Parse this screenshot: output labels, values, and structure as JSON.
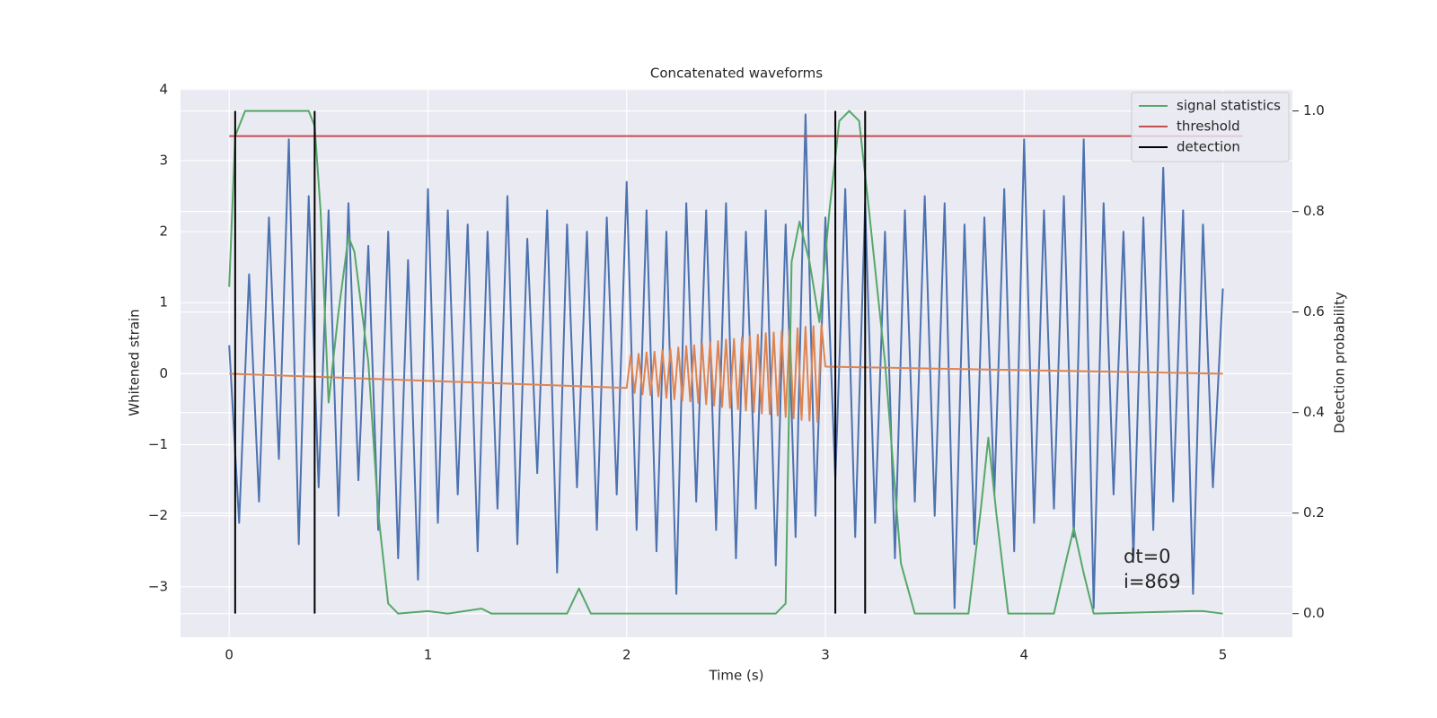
{
  "chart_data": {
    "type": "line",
    "title": "Concatenated waveforms",
    "xlabel": "Time (s)",
    "ylabel": "Whitened strain",
    "y2label": "Detection probability",
    "xlim": [
      -0.245,
      5.35
    ],
    "ylim": [
      -3.71,
      4.01
    ],
    "y2lim": [
      -0.047,
      1.044
    ],
    "xticks": [
      0,
      1,
      2,
      3,
      4,
      5
    ],
    "yticks": [
      {
        "value": -3,
        "label": "−3"
      },
      {
        "value": -2,
        "label": "−2"
      },
      {
        "value": -1,
        "label": "−1"
      },
      0,
      1,
      2,
      3,
      4
    ],
    "y2ticks": [
      {
        "value": 0,
        "label": "0.0"
      },
      0.2,
      0.4,
      0.6,
      0.8,
      {
        "value": 1,
        "label": "1.0"
      }
    ],
    "grid": true,
    "legend": "upper right",
    "annotations": [
      "dt=0",
      "i=869"
    ],
    "series": [
      {
        "color": "#4c72b0",
        "x": [
          0,
          0.05,
          0.1,
          0.15,
          0.2,
          0.25,
          0.3,
          0.35,
          0.4,
          0.45,
          0.5,
          0.55,
          0.6,
          0.65,
          0.7,
          0.75,
          0.8,
          0.85,
          0.9,
          0.95,
          1,
          1.05,
          1.1,
          1.15,
          1.2,
          1.25,
          1.3,
          1.35,
          1.4,
          1.45,
          1.5,
          1.55,
          1.6,
          1.65,
          1.7,
          1.75,
          1.8,
          1.85,
          1.9,
          1.95,
          2,
          2.05,
          2.1,
          2.15,
          2.2,
          2.25,
          2.3,
          2.35,
          2.4,
          2.45,
          2.5,
          2.55,
          2.6,
          2.65,
          2.7,
          2.75,
          2.8,
          2.85,
          2.9,
          2.95,
          3,
          3.05,
          3.1,
          3.15,
          3.2,
          3.25,
          3.3,
          3.35,
          3.4,
          3.45,
          3.5,
          3.55,
          3.6,
          3.65,
          3.7,
          3.75,
          3.8,
          3.85,
          3.9,
          3.95,
          4,
          4.05,
          4.1,
          4.15,
          4.2,
          4.25,
          4.3,
          4.35,
          4.4,
          4.45,
          4.5,
          4.55,
          4.6,
          4.65,
          4.7,
          4.75,
          4.8,
          4.85,
          4.9,
          4.95,
          5
        ],
        "values": [
          0.4,
          -2.1,
          1.4,
          -1.8,
          2.2,
          -1.2,
          3.3,
          -2.4,
          2.5,
          -1.6,
          2.3,
          -2.0,
          2.4,
          -1.5,
          1.8,
          -2.2,
          2.0,
          -2.6,
          1.6,
          -2.9,
          2.6,
          -2.1,
          2.3,
          -1.7,
          2.1,
          -2.5,
          2.0,
          -1.9,
          2.5,
          -2.4,
          1.9,
          -1.4,
          2.3,
          -2.8,
          2.1,
          -1.6,
          2.0,
          -2.2,
          2.2,
          -1.7,
          2.7,
          -2.2,
          2.3,
          -2.5,
          2.0,
          -3.1,
          2.4,
          -1.8,
          2.3,
          -2.2,
          2.4,
          -2.6,
          2.0,
          -1.9,
          2.3,
          -2.7,
          2.1,
          -2.3,
          3.65,
          -2.0,
          2.2,
          -1.5,
          2.6,
          -2.3,
          2.4,
          -2.1,
          2.0,
          -2.6,
          2.3,
          -1.8,
          2.5,
          -2.0,
          2.4,
          -3.3,
          2.1,
          -2.4,
          2.2,
          -1.7,
          2.6,
          -2.5,
          3.3,
          -2.1,
          2.3,
          -1.9,
          2.5,
          -2.3,
          3.3,
          -3.3,
          2.4,
          -1.7,
          2.0,
          -2.6,
          2.2,
          -2.2,
          2.9,
          -1.8,
          2.3,
          -3.1,
          2.1,
          -1.6,
          1.2
        ]
      },
      {
        "color": "#dd8452",
        "x": [
          0,
          2,
          2.02,
          2.04,
          2.06,
          2.08,
          2.1,
          2.12,
          2.14,
          2.16,
          2.18,
          2.2,
          2.22,
          2.24,
          2.26,
          2.28,
          2.3,
          2.32,
          2.34,
          2.36,
          2.38,
          2.4,
          2.42,
          2.44,
          2.46,
          2.48,
          2.5,
          2.52,
          2.54,
          2.56,
          2.58,
          2.6,
          2.62,
          2.64,
          2.66,
          2.68,
          2.7,
          2.72,
          2.74,
          2.76,
          2.78,
          2.8,
          2.82,
          2.84,
          2.86,
          2.88,
          2.9,
          2.92,
          2.94,
          2.96,
          2.98,
          3,
          5
        ],
        "values": [
          0,
          -0.2,
          0.26,
          -0.27,
          0.28,
          -0.29,
          0.3,
          -0.3,
          0.31,
          -0.32,
          0.33,
          -0.34,
          0.35,
          -0.36,
          0.37,
          -0.38,
          0.39,
          -0.39,
          0.4,
          -0.41,
          0.42,
          -0.43,
          0.44,
          -0.45,
          0.46,
          -0.47,
          0.48,
          -0.48,
          0.49,
          -0.5,
          0.51,
          -0.52,
          0.53,
          -0.54,
          0.55,
          -0.56,
          0.57,
          -0.57,
          0.58,
          -0.59,
          0.6,
          -0.61,
          0.62,
          -0.63,
          0.64,
          -0.65,
          0.66,
          -0.66,
          0.67,
          -0.68,
          0.69,
          0.1,
          0
        ]
      },
      {
        "name": "signal statistics",
        "color": "#55a868",
        "axis": "y2",
        "x": [
          0,
          0.03,
          0.08,
          0.4,
          0.43,
          0.46,
          0.5,
          0.55,
          0.6,
          0.63,
          0.7,
          0.75,
          0.8,
          0.85,
          1,
          1.1,
          1.27,
          1.32,
          1.7,
          1.76,
          1.82,
          2.75,
          2.8,
          2.83,
          2.87,
          2.92,
          2.97,
          3.02,
          3.07,
          3.12,
          3.17,
          3.22,
          3.3,
          3.38,
          3.45,
          3.72,
          3.78,
          3.82,
          3.86,
          3.92,
          4.15,
          4.22,
          4.25,
          4.3,
          4.35,
          4.85,
          4.9,
          5
        ],
        "values": [
          0.65,
          0.95,
          1,
          1,
          0.97,
          0.8,
          0.42,
          0.6,
          0.75,
          0.72,
          0.5,
          0.2,
          0.02,
          0,
          0.005,
          0,
          0.01,
          0,
          0,
          0.05,
          0,
          0,
          0.02,
          0.7,
          0.78,
          0.7,
          0.58,
          0.8,
          0.98,
          1,
          0.98,
          0.8,
          0.5,
          0.1,
          0,
          0,
          0.2,
          0.35,
          0.2,
          0,
          0,
          0.12,
          0.17,
          0.08,
          0,
          0.005,
          0.005,
          0
        ]
      },
      {
        "name": "threshold",
        "color": "#c44e52",
        "axis": "y2",
        "x": [
          0,
          5.1
        ],
        "values": [
          0.95,
          0.95
        ]
      },
      {
        "name": "detection",
        "color": "#000000",
        "axis": "y2",
        "type": "vlines",
        "x": [
          0.03,
          0.43,
          3.05,
          3.2
        ],
        "ymin": 0,
        "ymax": 1
      }
    ]
  }
}
